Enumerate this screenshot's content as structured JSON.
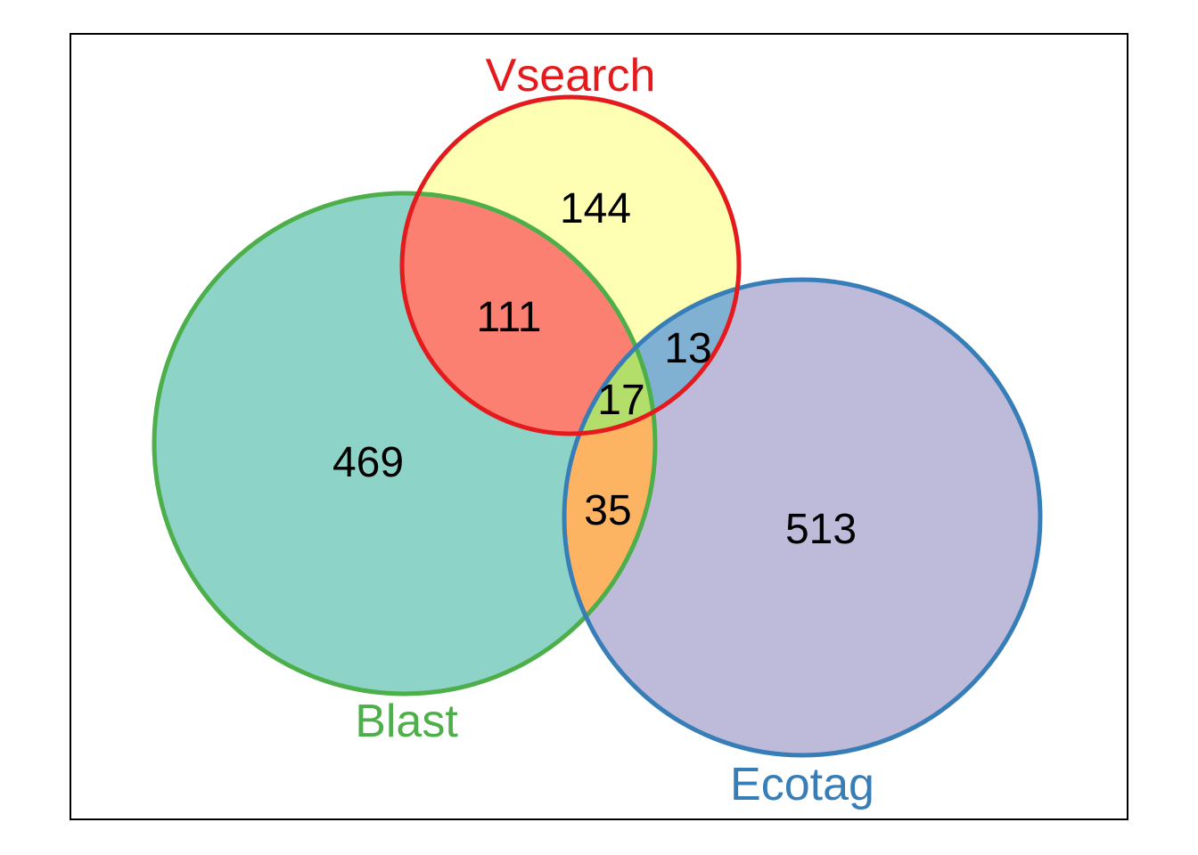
{
  "sets": [
    {
      "id": "vsearch",
      "label": "Vsearch",
      "stroke": "#e41a1c",
      "fill": "#ffffb3"
    },
    {
      "id": "blast",
      "label": "Blast",
      "stroke": "#4daf4a",
      "fill": "#8dd3c7"
    },
    {
      "id": "ecotag",
      "label": "Ecotag",
      "stroke": "#377eb8",
      "fill": "#bebada"
    }
  ],
  "regions": [
    {
      "id": "vsearch_only",
      "sets": [
        "vsearch"
      ],
      "count": "144",
      "fill": "#ffffb3"
    },
    {
      "id": "blast_only",
      "sets": [
        "blast"
      ],
      "count": "469",
      "fill": "#8dd3c7"
    },
    {
      "id": "ecotag_only",
      "sets": [
        "ecotag"
      ],
      "count": "513",
      "fill": "#bebada"
    },
    {
      "id": "vsearch_blast",
      "sets": [
        "vsearch",
        "blast"
      ],
      "count": "111",
      "fill": "#fb8072"
    },
    {
      "id": "vsearch_ecotag",
      "sets": [
        "vsearch",
        "ecotag"
      ],
      "count": "13",
      "fill": "#80b1d3"
    },
    {
      "id": "blast_ecotag",
      "sets": [
        "blast",
        "ecotag"
      ],
      "count": "35",
      "fill": "#fdb462"
    },
    {
      "id": "all_three",
      "sets": [
        "vsearch",
        "blast",
        "ecotag"
      ],
      "count": "17",
      "fill": "#b3de69"
    }
  ]
}
